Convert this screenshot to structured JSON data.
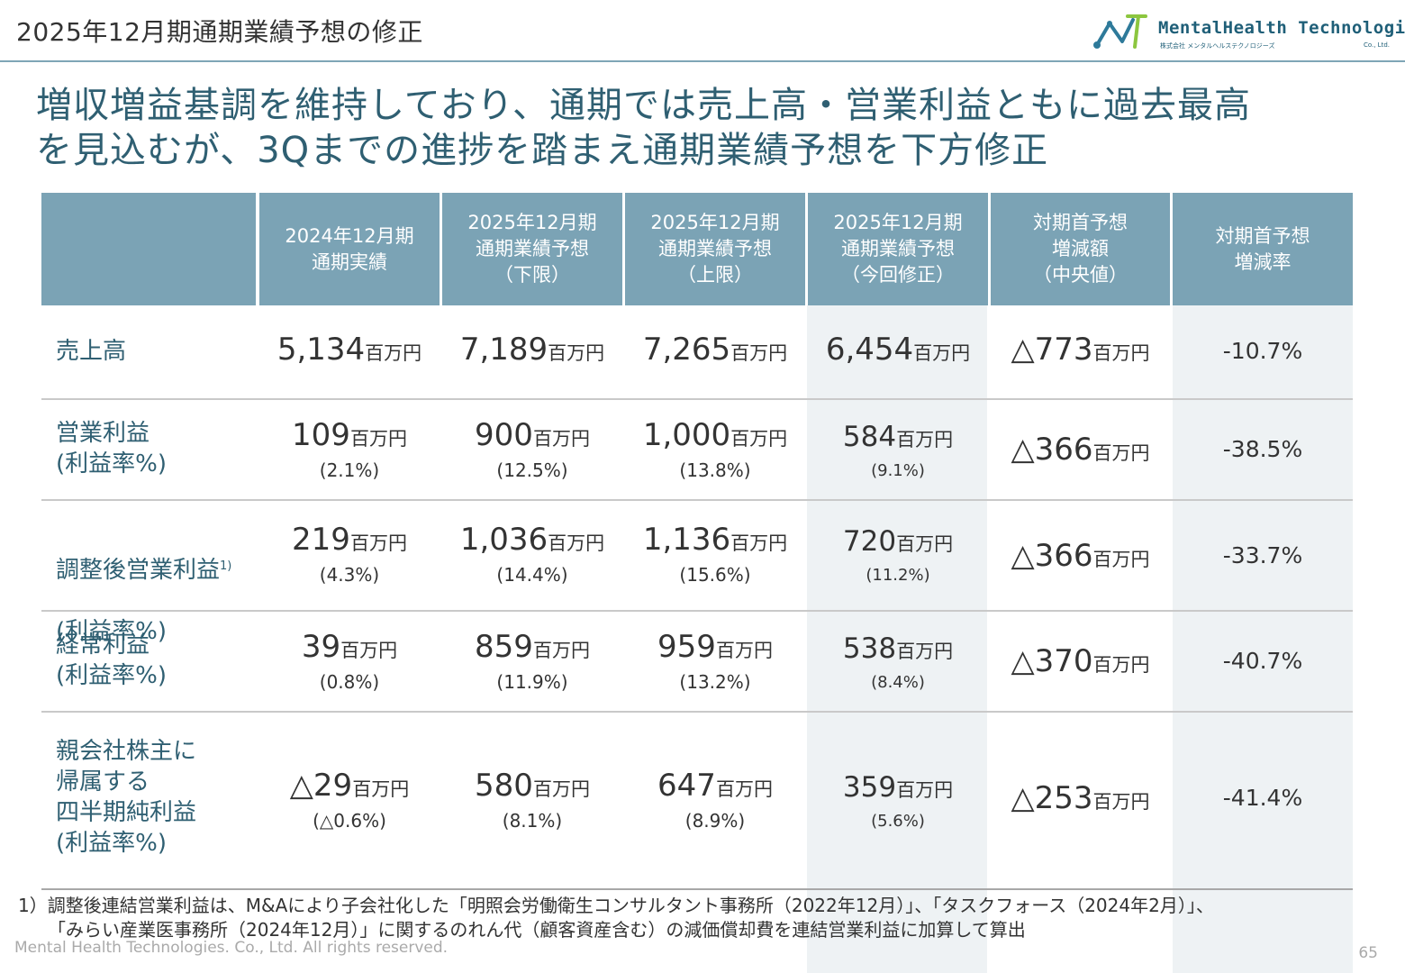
{
  "header": {
    "title": "2025年12月期通期業績予想の修正",
    "logo_name": "MentalHealth Technologies",
    "logo_sub": "株式会社 メンタルヘルステクノロジーズ",
    "logo_coltd": "Co., Ltd."
  },
  "headline": {
    "line1": "増収増益基調を維持しており、通期では売上高・営業利益ともに過去最高",
    "line2": "を見込むが、3Qまでの進捗を踏まえ通期業績予想を下方修正"
  },
  "table": {
    "columns": [
      "2024年12月期\n通期実績",
      "2025年12月期\n通期業績予想\n（下限）",
      "2025年12月期\n通期業績予想\n（上限）",
      "2025年12月期\n通期業績予想\n（今回修正）",
      "対期首予想\n増減額\n（中央値）",
      "対期首予想\n増減率"
    ],
    "unit": "百万円",
    "rows": [
      {
        "label": "売上高",
        "sup": "",
        "values": [
          "5,134",
          "7,189",
          "7,265",
          "6,454",
          "△773"
        ],
        "subs": [
          "",
          "",
          "",
          "",
          ""
        ],
        "rate": "-10.7%"
      },
      {
        "label": "営業利益\n(利益率%)",
        "sup": "",
        "values": [
          "109",
          "900",
          "1,000",
          "584",
          "△366"
        ],
        "subs": [
          "(2.1%)",
          "(12.5%)",
          "(13.8%)",
          "(9.1%)",
          ""
        ],
        "rate": "-38.5%"
      },
      {
        "label": "調整後営業利益",
        "label2": "(利益率%)",
        "sup": "1)",
        "values": [
          "219",
          "1,036",
          "1,136",
          "720",
          "△366"
        ],
        "subs": [
          "(4.3%)",
          "(14.4%)",
          "(15.6%)",
          "(11.2%)",
          ""
        ],
        "rate": "-33.7%"
      },
      {
        "label": "経常利益\n(利益率%)",
        "sup": "",
        "values": [
          "39",
          "859",
          "959",
          "538",
          "△370"
        ],
        "subs": [
          "(0.8%)",
          "(11.9%)",
          "(13.2%)",
          "(8.4%)",
          ""
        ],
        "rate": "-40.7%"
      },
      {
        "label": "親会社株主に\n帰属する\n四半期純利益\n(利益率%)",
        "sup": "",
        "values": [
          "△29",
          "580",
          "647",
          "359",
          "△253"
        ],
        "subs": [
          "(△0.6%)",
          "(8.1%)",
          "(8.9%)",
          "(5.6%)",
          ""
        ],
        "rate": "-41.4%"
      }
    ]
  },
  "footnote": {
    "line1": "1）調整後連結営業利益は、M&Aにより子会社化した「明照会労働衛生コンサルタント事務所（2022年12月）」、「タスクフォース（2024年2月）」、",
    "line2": "「みらい産業医事務所（2024年12月）」に関するのれん代（顧客資産含む）の減価償却費を連結営業利益に加算して算出"
  },
  "footer": {
    "copyright": "Mental Health Technologies. Co., Ltd. All rights reserved.",
    "page": "65"
  },
  "colors": {
    "header_bg": "#7ba3b5",
    "accent_text": "#2f5f72",
    "highlight_col": "#eef2f4"
  }
}
